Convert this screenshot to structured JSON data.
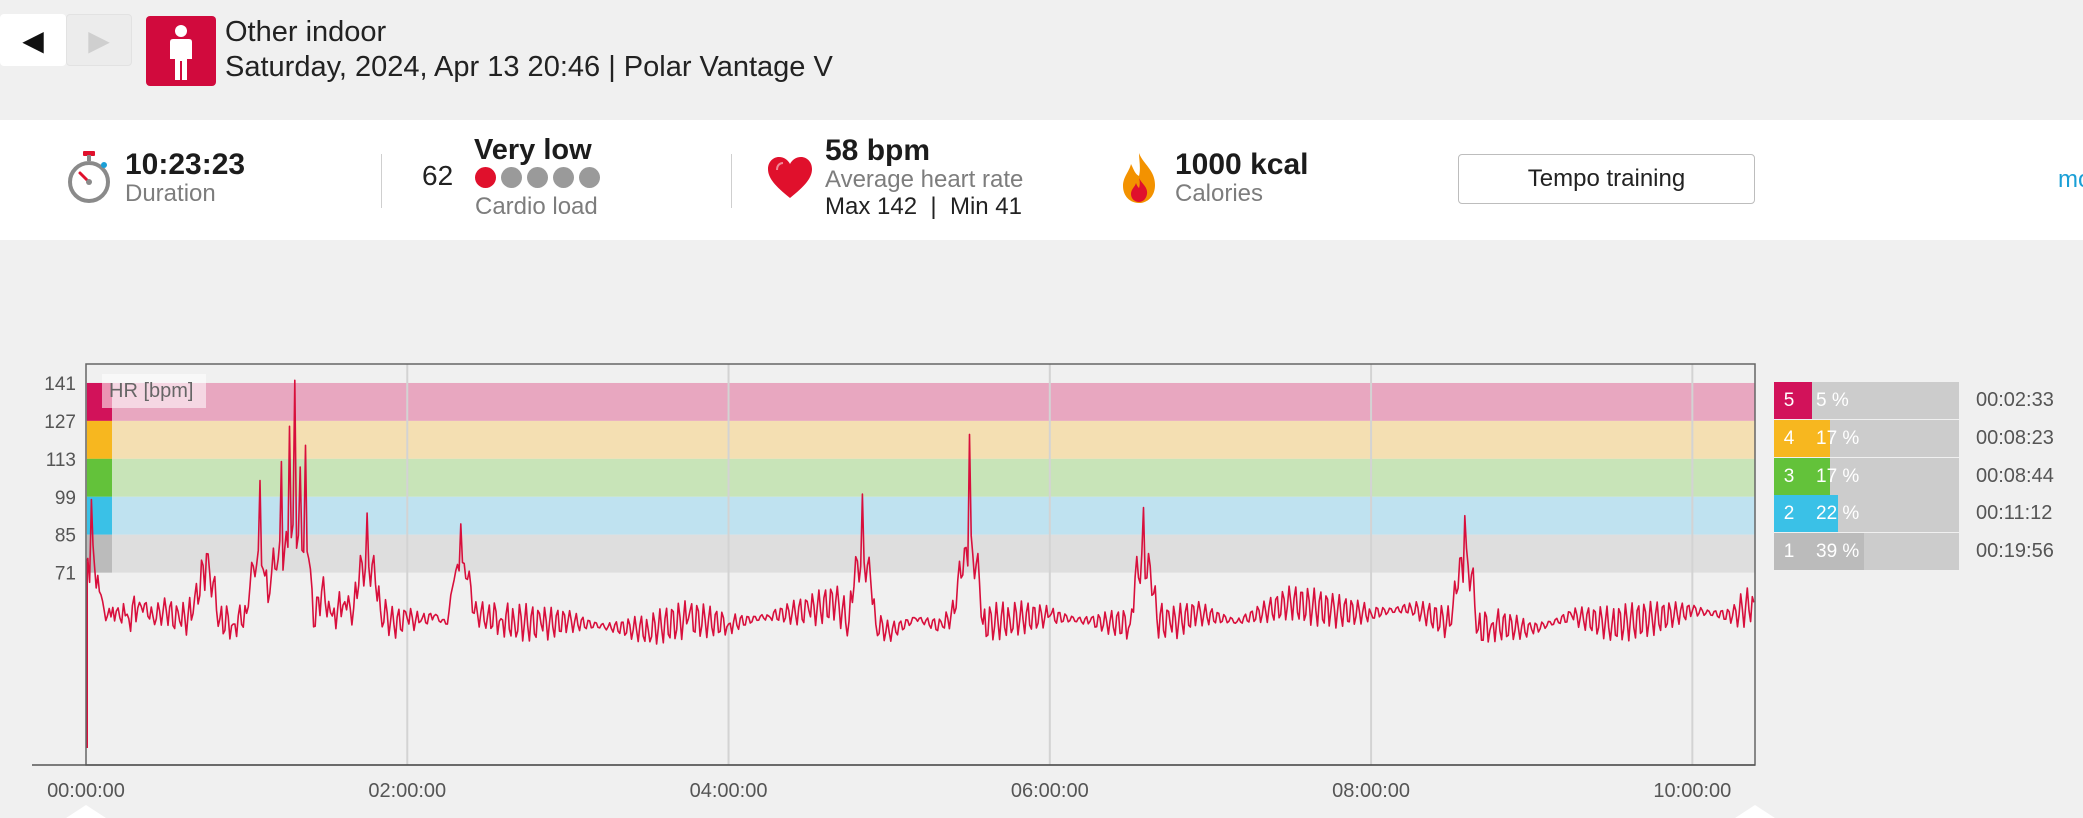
{
  "nav": {
    "prev": "◀",
    "next": "▶"
  },
  "session": {
    "sport": "Other indoor",
    "subtitle": "Saturday, 2024, Apr 13 20:46 | Polar Vantage V",
    "sport_icon": "person-icon"
  },
  "summary": {
    "duration": {
      "value": "10:23:23",
      "label": "Duration",
      "icon": "stopwatch-icon"
    },
    "cardio": {
      "number": "62",
      "level": "Very low",
      "label": "Cardio load",
      "dots_total": 5,
      "dots_filled": 1
    },
    "heart_rate": {
      "value": "58 bpm",
      "label": "Average heart rate",
      "maxmin": "Max 142  |  Min 41",
      "icon": "heart-icon"
    },
    "calories": {
      "value": "1000 kcal",
      "label": "Calories",
      "icon": "flame-icon"
    },
    "benefit_button": "Tempo training",
    "more_link": "mo"
  },
  "chart_data": {
    "type": "line",
    "series": [
      {
        "name": "HR [bpm]",
        "x": [
          "00:00",
          "00:02",
          "00:05",
          "00:08",
          "00:12",
          "00:16",
          "00:20",
          "00:25",
          "00:30",
          "00:35",
          "00:40",
          "00:45",
          "00:50",
          "00:55",
          "01:00",
          "01:05",
          "01:08",
          "01:10",
          "01:13",
          "01:16",
          "01:18",
          "01:20",
          "01:22",
          "01:25",
          "01:28",
          "01:32",
          "01:36",
          "01:40",
          "01:45",
          "01:50",
          "01:55",
          "02:00",
          "02:05",
          "02:10",
          "02:15",
          "02:20",
          "02:25",
          "02:30",
          "02:35",
          "02:40",
          "02:50",
          "03:00",
          "03:15",
          "03:30",
          "03:45",
          "04:00",
          "04:15",
          "04:30",
          "04:40",
          "04:45",
          "04:50",
          "04:55",
          "05:00",
          "05:10",
          "05:20",
          "05:25",
          "05:30",
          "05:35",
          "05:45",
          "06:00",
          "06:15",
          "06:30",
          "06:35",
          "06:40",
          "06:45",
          "06:55",
          "07:10",
          "07:30",
          "07:45",
          "08:00",
          "08:15",
          "08:30",
          "08:35",
          "08:40",
          "08:45",
          "09:00",
          "09:15",
          "09:30",
          "09:45",
          "10:00",
          "10:15",
          "10:23"
        ],
        "values": [
          75,
          98,
          64,
          55,
          58,
          54,
          60,
          55,
          57,
          53,
          56,
          78,
          54,
          52,
          56,
          105,
          60,
          80,
          112,
          125,
          142,
          110,
          118,
          51,
          64,
          55,
          59,
          58,
          93,
          57,
          52,
          54,
          53,
          55,
          52,
          89,
          56,
          55,
          54,
          53,
          52,
          53,
          51,
          50,
          54,
          52,
          55,
          57,
          60,
          53,
          100,
          52,
          49,
          54,
          51,
          58,
          122,
          52,
          54,
          55,
          53,
          52,
          95,
          54,
          52,
          56,
          53,
          60,
          57,
          56,
          58,
          52,
          92,
          50,
          52,
          50,
          55,
          52,
          54,
          57,
          55,
          60
        ],
        "color": "#d80f3c"
      }
    ],
    "x_ticks": [
      "00:00:00",
      "02:00:00",
      "04:00:00",
      "06:00:00",
      "08:00:00",
      "10:00:00"
    ],
    "y_ticks": [
      141,
      127,
      113,
      99,
      85,
      71
    ],
    "ylim": [
      0,
      148
    ],
    "ylabel": "HR [bpm]",
    "zones": [
      {
        "zone": 5,
        "from": 127,
        "to": 141,
        "color": "#e8a7c0",
        "marker": "#d2125a"
      },
      {
        "zone": 4,
        "from": 113,
        "to": 127,
        "color": "#f4dfb2",
        "marker": "#f7b71f"
      },
      {
        "zone": 3,
        "from": 99,
        "to": 113,
        "color": "#c8e4b8",
        "marker": "#63c23a"
      },
      {
        "zone": 2,
        "from": 85,
        "to": 99,
        "color": "#bfe2f0",
        "marker": "#3ac1e7"
      },
      {
        "zone": 1,
        "from": 71,
        "to": 85,
        "color": "#dedede",
        "marker": "#bbbbbb"
      }
    ],
    "grid": true
  },
  "zones_panel": [
    {
      "num": "5",
      "pct": "5 %",
      "value": 0.05,
      "time": "00:02:33",
      "color": "#d2125a"
    },
    {
      "num": "4",
      "pct": "17 %",
      "value": 0.17,
      "time": "00:08:23",
      "color": "#f7b71f"
    },
    {
      "num": "3",
      "pct": "17 %",
      "value": 0.17,
      "time": "00:08:44",
      "color": "#63c23a"
    },
    {
      "num": "2",
      "pct": "22 %",
      "value": 0.22,
      "time": "00:11:12",
      "color": "#3ac1e7"
    },
    {
      "num": "1",
      "pct": "39 %",
      "value": 0.39,
      "time": "00:19:56",
      "color": "#bbbbbb"
    }
  ]
}
